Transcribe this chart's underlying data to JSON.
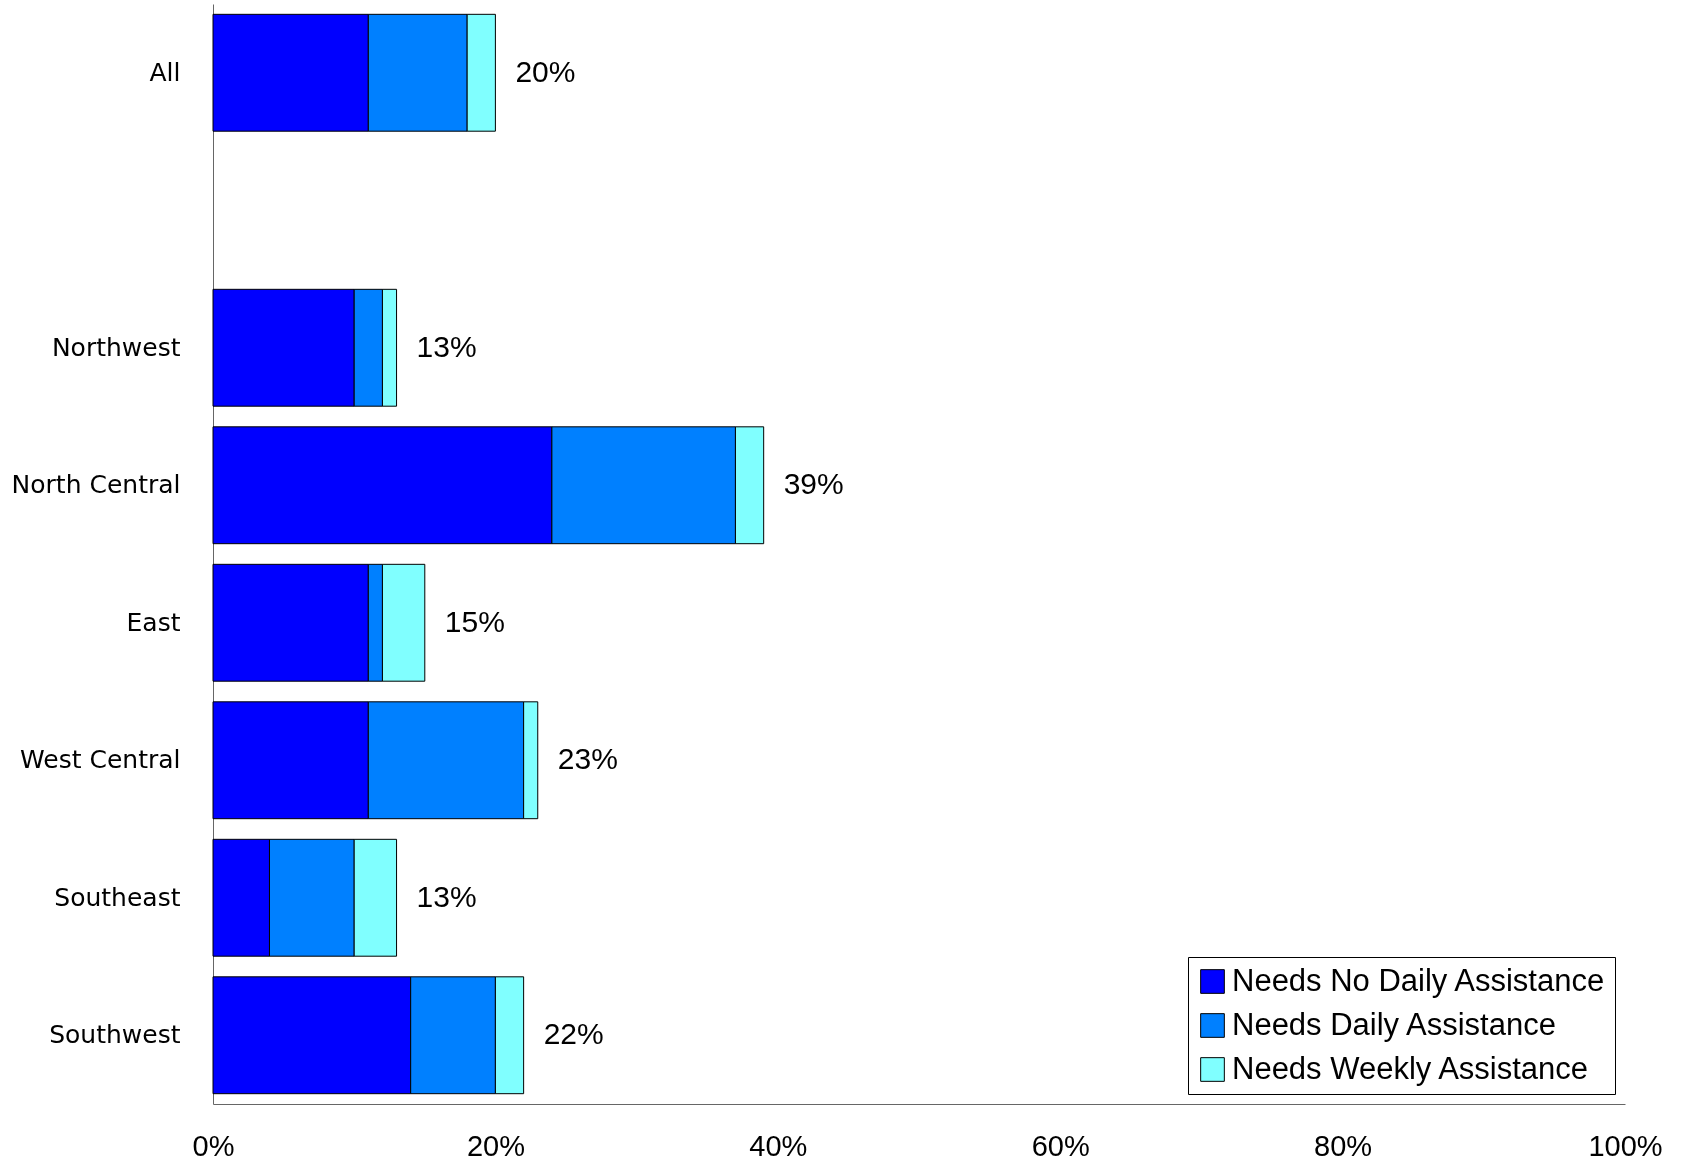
{
  "chart_data": {
    "type": "bar",
    "orientation": "horizontal",
    "stacked": true,
    "categories": [
      "All",
      null,
      "Northwest",
      "North Central",
      "East",
      "West Central",
      "Southeast",
      "Southwest"
    ],
    "series": [
      {
        "name": "Needs No Daily Assistance",
        "color": "#0000ff",
        "values": [
          11,
          null,
          10,
          24,
          11,
          11,
          4,
          14
        ]
      },
      {
        "name": "Needs Daily Assistance",
        "color": "#0080ff",
        "values": [
          7,
          null,
          2,
          13,
          1,
          11,
          6,
          6
        ]
      },
      {
        "name": "Needs Weekly Assistance",
        "color": "#80ffff",
        "values": [
          2,
          null,
          1,
          2,
          3,
          1,
          3,
          2
        ]
      }
    ],
    "totals": [
      "20%",
      null,
      "13%",
      "39%",
      "15%",
      "23%",
      "13%",
      "22%"
    ],
    "xlim": [
      0,
      100
    ],
    "xticks": [
      {
        "value": 0,
        "label": "0%"
      },
      {
        "value": 20,
        "label": "20%"
      },
      {
        "value": 40,
        "label": "40%"
      },
      {
        "value": 60,
        "label": "60%"
      },
      {
        "value": 80,
        "label": "80%"
      },
      {
        "value": 100,
        "label": "100%"
      }
    ],
    "grid": false,
    "legend": "bottom right"
  }
}
